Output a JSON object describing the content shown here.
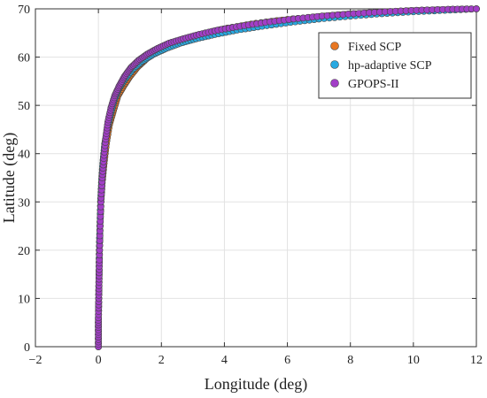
{
  "chart_data": {
    "type": "scatter",
    "xlabel": "Longitude (deg)",
    "ylabel": "Latitude (deg)",
    "xlim": [
      -2,
      12
    ],
    "ylim": [
      0,
      70
    ],
    "xticks": [
      "-2",
      "0",
      "2",
      "4",
      "6",
      "8",
      "10",
      "12"
    ],
    "yticks": [
      "0",
      "10",
      "20",
      "30",
      "40",
      "50",
      "60",
      "70"
    ],
    "grid": true,
    "legend_position": "top-right",
    "series": [
      {
        "name": "Fixed SCP",
        "color": "#E87722",
        "x": [
          0.0,
          0.0,
          0.01,
          0.02,
          0.03,
          0.05,
          0.08,
          0.12,
          0.18,
          0.25,
          0.35,
          0.48,
          0.62,
          0.8,
          1.0,
          1.25,
          1.55,
          1.9,
          2.3,
          2.8,
          3.4,
          4.1,
          5.0,
          6.0,
          7.0,
          8.0,
          9.0,
          10.0,
          11.0,
          12.0
        ],
        "y": [
          0,
          5,
          10,
          15,
          20,
          25,
          30,
          34,
          38,
          42,
          46,
          49,
          52,
          54,
          56,
          58,
          59.8,
          61.3,
          62.6,
          63.8,
          65.0,
          66.0,
          67.0,
          67.8,
          68.4,
          68.9,
          69.3,
          69.6,
          69.8,
          70.0
        ]
      },
      {
        "name": "hp-adaptive SCP",
        "color": "#29A9E1",
        "x": [
          0.0,
          0.0,
          0.01,
          0.02,
          0.03,
          0.05,
          0.07,
          0.1,
          0.14,
          0.2,
          0.28,
          0.38,
          0.5,
          0.65,
          0.85,
          1.1,
          1.4,
          1.75,
          2.15,
          2.6,
          3.1,
          3.7,
          4.4,
          5.2,
          6.1,
          7.0,
          8.0,
          9.0,
          10.0,
          11.0,
          12.0
        ],
        "y": [
          0,
          5,
          10,
          15,
          20,
          25,
          30,
          34,
          38,
          42,
          45,
          48,
          51,
          53.5,
          55.5,
          57.5,
          59.2,
          60.6,
          61.8,
          62.9,
          63.8,
          64.7,
          65.6,
          66.4,
          67.2,
          67.9,
          68.5,
          69.0,
          69.4,
          69.7,
          70.0
        ]
      },
      {
        "name": "GPOPS-II",
        "color": "#A23EC7",
        "x": [
          0.0,
          0.0,
          0.0,
          0.01,
          0.02,
          0.03,
          0.05,
          0.08,
          0.12,
          0.17,
          0.23,
          0.3,
          0.4,
          0.52,
          0.66,
          0.83,
          1.03,
          1.27,
          1.55,
          1.88,
          2.25,
          2.7,
          3.2,
          3.8,
          4.5,
          5.3,
          6.2,
          7.1,
          8.1,
          9.1,
          10.1,
          11.1,
          12.0
        ],
        "y": [
          0,
          3,
          6,
          10,
          14,
          18,
          24,
          30,
          35,
          39,
          43,
          46.5,
          49.5,
          52,
          54,
          56,
          57.8,
          59.3,
          60.6,
          61.8,
          62.9,
          63.8,
          64.7,
          65.6,
          66.4,
          67.2,
          67.9,
          68.5,
          69.0,
          69.4,
          69.7,
          69.9,
          70.0
        ]
      }
    ]
  }
}
